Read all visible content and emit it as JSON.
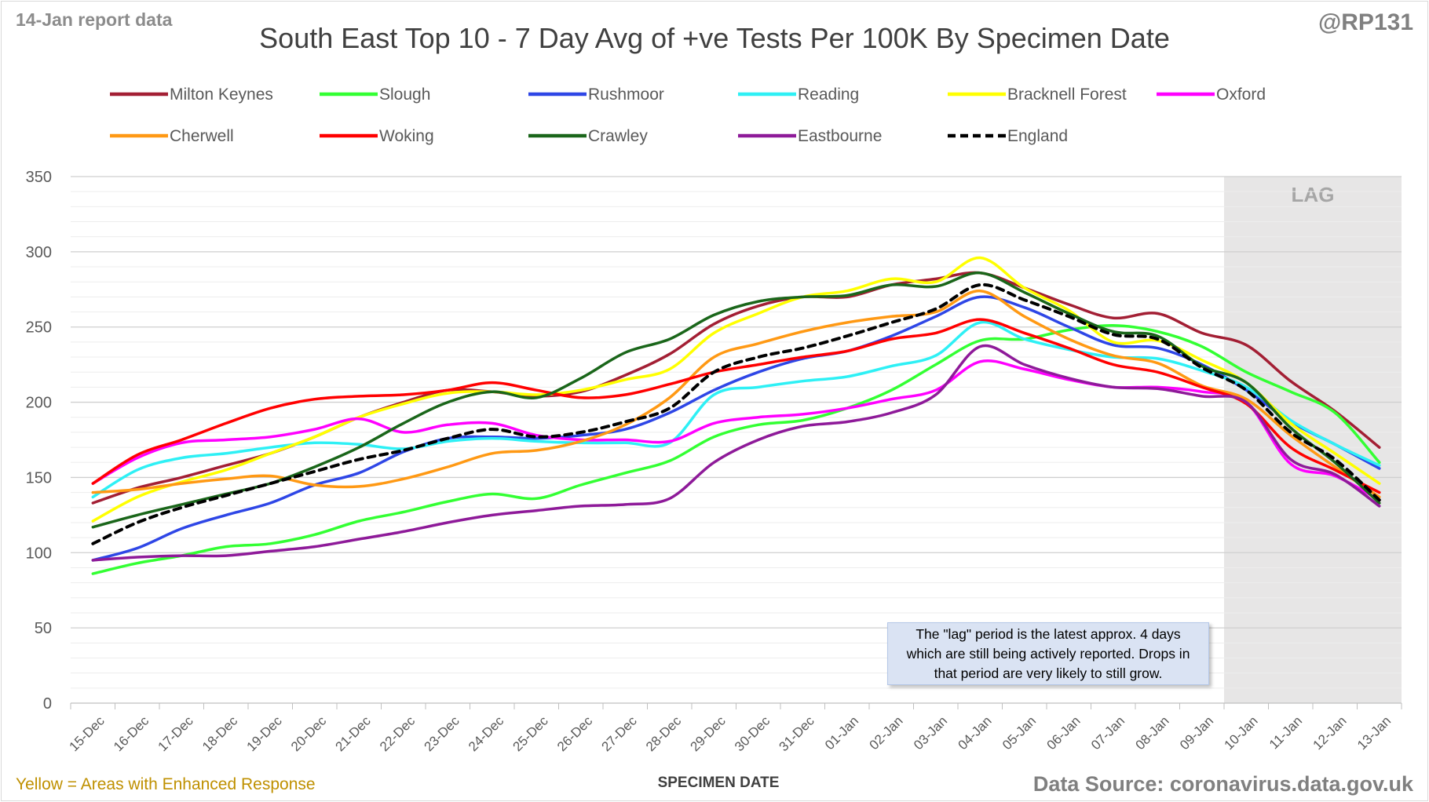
{
  "header": {
    "report_label": "14-Jan report data",
    "author": "@RP131",
    "title": "South East Top 10 - 7 Day Avg of +ve Tests Per 100K By Specimen Date"
  },
  "footer": {
    "note": "Yellow = Areas with Enhanced Response",
    "source": "Data Source: coronavirus.data.gov.uk"
  },
  "lag_note": "The \"lag\" period is the latest approx. 4 days which are still being actively reported. Drops in that period are very likely to still grow.",
  "chart_data": {
    "type": "line",
    "title": "South East Top 10 - 7 Day Avg of +ve Tests Per 100K By Specimen Date",
    "xlabel": "SPECIMEN DATE",
    "ylabel": "",
    "ylim": [
      0,
      350
    ],
    "yticks": [
      0,
      50,
      100,
      150,
      200,
      250,
      300,
      350
    ],
    "grid": true,
    "legend_position": "top",
    "lag_label": "LAG",
    "lag_range": [
      "10-Jan",
      "13-Jan"
    ],
    "categories": [
      "15-Dec",
      "16-Dec",
      "17-Dec",
      "18-Dec",
      "19-Dec",
      "20-Dec",
      "21-Dec",
      "22-Dec",
      "23-Dec",
      "24-Dec",
      "25-Dec",
      "26-Dec",
      "27-Dec",
      "28-Dec",
      "29-Dec",
      "30-Dec",
      "31-Dec",
      "01-Jan",
      "02-Jan",
      "03-Jan",
      "04-Jan",
      "05-Jan",
      "06-Jan",
      "07-Jan",
      "08-Jan",
      "09-Jan",
      "10-Jan",
      "11-Jan",
      "12-Jan",
      "13-Jan"
    ],
    "series": [
      {
        "name": "Milton Keynes",
        "color": "#a31f34",
        "dashed": false,
        "values": [
          133,
          143,
          150,
          158,
          166,
          177,
          190,
          200,
          208,
          207,
          204,
          207,
          218,
          232,
          252,
          264,
          270,
          270,
          278,
          282,
          286,
          276,
          265,
          256,
          259,
          246,
          238,
          214,
          194,
          170
        ]
      },
      {
        "name": "Slough",
        "color": "#33ff33",
        "dashed": false,
        "values": [
          86,
          93,
          98,
          104,
          106,
          112,
          121,
          127,
          134,
          139,
          136,
          145,
          153,
          161,
          177,
          185,
          188,
          196,
          208,
          225,
          241,
          242,
          248,
          251,
          247,
          237,
          220,
          207,
          193,
          160
        ]
      },
      {
        "name": "Rushmoor",
        "color": "#2e46e6",
        "dashed": false,
        "values": [
          95,
          103,
          116,
          125,
          133,
          145,
          153,
          167,
          176,
          177,
          176,
          178,
          182,
          193,
          208,
          220,
          229,
          234,
          244,
          257,
          270,
          263,
          250,
          238,
          236,
          225,
          208,
          187,
          172,
          156
        ]
      },
      {
        "name": "Reading",
        "color": "#2ef0f5",
        "dashed": false,
        "values": [
          137,
          155,
          163,
          166,
          170,
          173,
          172,
          169,
          174,
          176,
          174,
          173,
          173,
          173,
          205,
          210,
          214,
          217,
          224,
          231,
          253,
          242,
          235,
          230,
          229,
          221,
          210,
          188,
          172,
          158
        ]
      },
      {
        "name": "Bracknell Forest",
        "color": "#ffff00",
        "dashed": false,
        "values": [
          121,
          137,
          147,
          155,
          166,
          177,
          190,
          199,
          206,
          207,
          205,
          208,
          215,
          222,
          246,
          259,
          270,
          274,
          282,
          280,
          296,
          276,
          261,
          240,
          241,
          228,
          213,
          186,
          166,
          146
        ]
      },
      {
        "name": "Oxford",
        "color": "#ff00ff",
        "dashed": false,
        "values": [
          146,
          163,
          173,
          175,
          177,
          182,
          189,
          180,
          185,
          186,
          178,
          175,
          175,
          174,
          186,
          190,
          192,
          196,
          202,
          208,
          227,
          222,
          215,
          210,
          210,
          207,
          200,
          159,
          151,
          135
        ]
      },
      {
        "name": "Cherwell",
        "color": "#ff9914",
        "dashed": false,
        "values": [
          140,
          142,
          146,
          149,
          151,
          145,
          144,
          149,
          157,
          166,
          168,
          174,
          185,
          203,
          230,
          239,
          247,
          253,
          257,
          260,
          274,
          257,
          242,
          231,
          226,
          211,
          202,
          178,
          157,
          137
        ]
      },
      {
        "name": "Woking",
        "color": "#ff0000",
        "dashed": false,
        "values": [
          146,
          165,
          175,
          186,
          196,
          202,
          204,
          205,
          208,
          213,
          208,
          203,
          205,
          212,
          220,
          225,
          230,
          234,
          242,
          246,
          255,
          246,
          236,
          225,
          220,
          210,
          199,
          170,
          155,
          140
        ]
      },
      {
        "name": "Crawley",
        "color": "#1a661a",
        "dashed": false,
        "values": [
          117,
          125,
          132,
          139,
          146,
          157,
          170,
          186,
          200,
          207,
          203,
          216,
          233,
          242,
          258,
          267,
          270,
          271,
          278,
          277,
          286,
          273,
          259,
          247,
          244,
          224,
          213,
          183,
          160,
          133
        ]
      },
      {
        "name": "Eastbourne",
        "color": "#8e1a99",
        "dashed": false,
        "values": [
          95,
          97,
          98,
          98,
          101,
          104,
          109,
          114,
          120,
          125,
          128,
          131,
          132,
          136,
          160,
          175,
          184,
          187,
          193,
          205,
          237,
          225,
          216,
          210,
          209,
          204,
          200,
          162,
          152,
          131
        ]
      },
      {
        "name": "England",
        "color": "#000000",
        "dashed": true,
        "values": [
          106,
          120,
          130,
          138,
          146,
          154,
          162,
          168,
          176,
          182,
          177,
          180,
          187,
          196,
          220,
          230,
          236,
          244,
          253,
          262,
          278,
          268,
          257,
          245,
          242,
          223,
          208,
          180,
          162,
          135
        ]
      }
    ]
  }
}
